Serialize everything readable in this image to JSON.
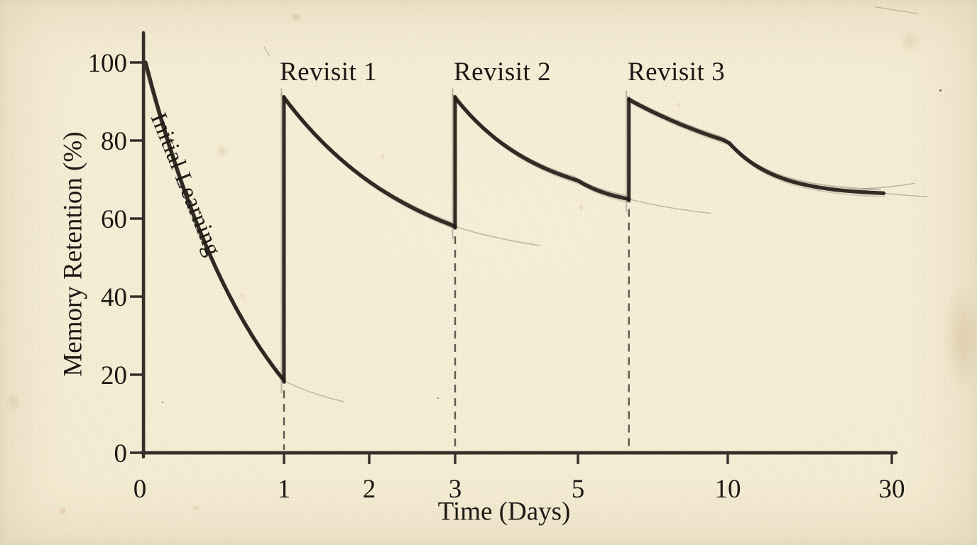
{
  "chart_data": {
    "type": "line",
    "title": "",
    "xlabel": "Time (Days)",
    "ylabel": "Memory Retention (%)",
    "x_ticks": [
      0,
      1,
      2,
      3,
      5,
      10,
      30
    ],
    "y_ticks": [
      0,
      20,
      40,
      60,
      80,
      100
    ],
    "ylim": [
      0,
      100
    ],
    "x_scale_note": "non-linear hand-drawn axis; later days compressed",
    "grid": false,
    "legend": "none",
    "annotations": [
      {
        "id": "initial-learning",
        "text": "Initial Learning",
        "attached_to": "first decay segment",
        "rotation_deg": 68
      },
      {
        "id": "revisit-1",
        "text": "Revisit 1",
        "day": 1
      },
      {
        "id": "revisit-2",
        "text": "Revisit 2",
        "day": 3
      },
      {
        "id": "revisit-3",
        "text": "Revisit 3",
        "day": 6.7
      }
    ],
    "review_spikes": [
      {
        "day": 1,
        "from_pct": 18.5,
        "to_pct": 91
      },
      {
        "day": 3,
        "from_pct": 58,
        "to_pct": 91
      },
      {
        "day": 6.7,
        "from_pct": 65,
        "to_pct": 90.5
      }
    ],
    "segments": [
      {
        "name": "initial-learning-decay",
        "t_start": 0,
        "v_start": 100,
        "t_end": 1,
        "v_end": 18.5,
        "shape_asymptote": -20
      },
      {
        "name": "decay-after-revisit-1",
        "t_start": 1,
        "v_start": 91,
        "t_end": 3,
        "v_end": 58,
        "shape_asymptote": 45
      },
      {
        "name": "decay-after-revisit-2",
        "t_start": 3,
        "v_start": 91,
        "t_end": 6.7,
        "v_end": 65,
        "shape_asymptote": 63
      },
      {
        "name": "decay-after-revisit-3",
        "t_start": 6.7,
        "v_start": 90.5,
        "t_end": 29,
        "v_end": 66.5,
        "shape_asymptote": 66
      }
    ],
    "dashed_guides_at_days": [
      1,
      3,
      6.7
    ]
  },
  "style": {
    "ink": "#221d18",
    "paper": "#f4ebd2",
    "dash_color": "#45403a",
    "ghost": "rgba(70,60,45,0.30)"
  }
}
